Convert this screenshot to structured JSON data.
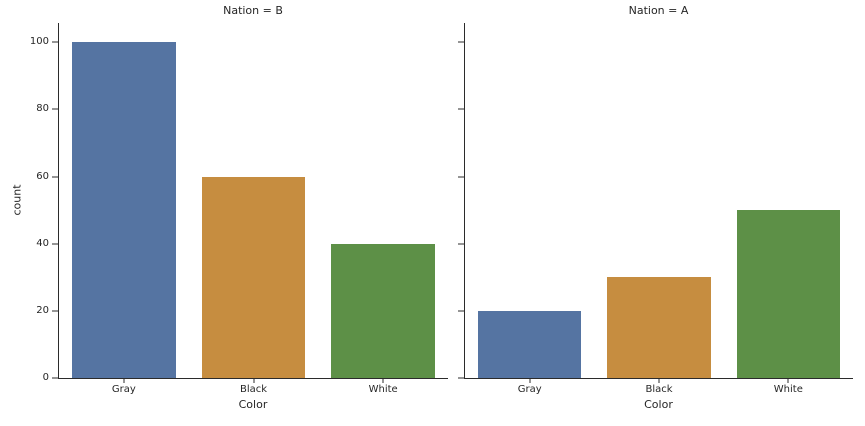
{
  "figure": {
    "background": "#ffffff",
    "text_color": "#262626",
    "spine_color": "#2b2b2b"
  },
  "chart_data": {
    "type": "bar",
    "layout": "two horizontal facets sharing the y axis, despined top and right, no grid",
    "categories": [
      "Gray",
      "Black",
      "White"
    ],
    "facets": [
      {
        "title": "Nation = B",
        "values": [
          100,
          60,
          40
        ]
      },
      {
        "title": "Nation = A",
        "values": [
          20,
          30,
          50
        ]
      }
    ],
    "xlabel": "Color",
    "ylabel": "count",
    "yticks": [
      0,
      20,
      40,
      60,
      80,
      100
    ],
    "ylim": [
      0,
      105.7
    ],
    "bar_colors": [
      "#5574a2",
      "#c68d40",
      "#5d9047"
    ],
    "bar_width_frac": 0.8,
    "grid": false,
    "legend": "none"
  }
}
